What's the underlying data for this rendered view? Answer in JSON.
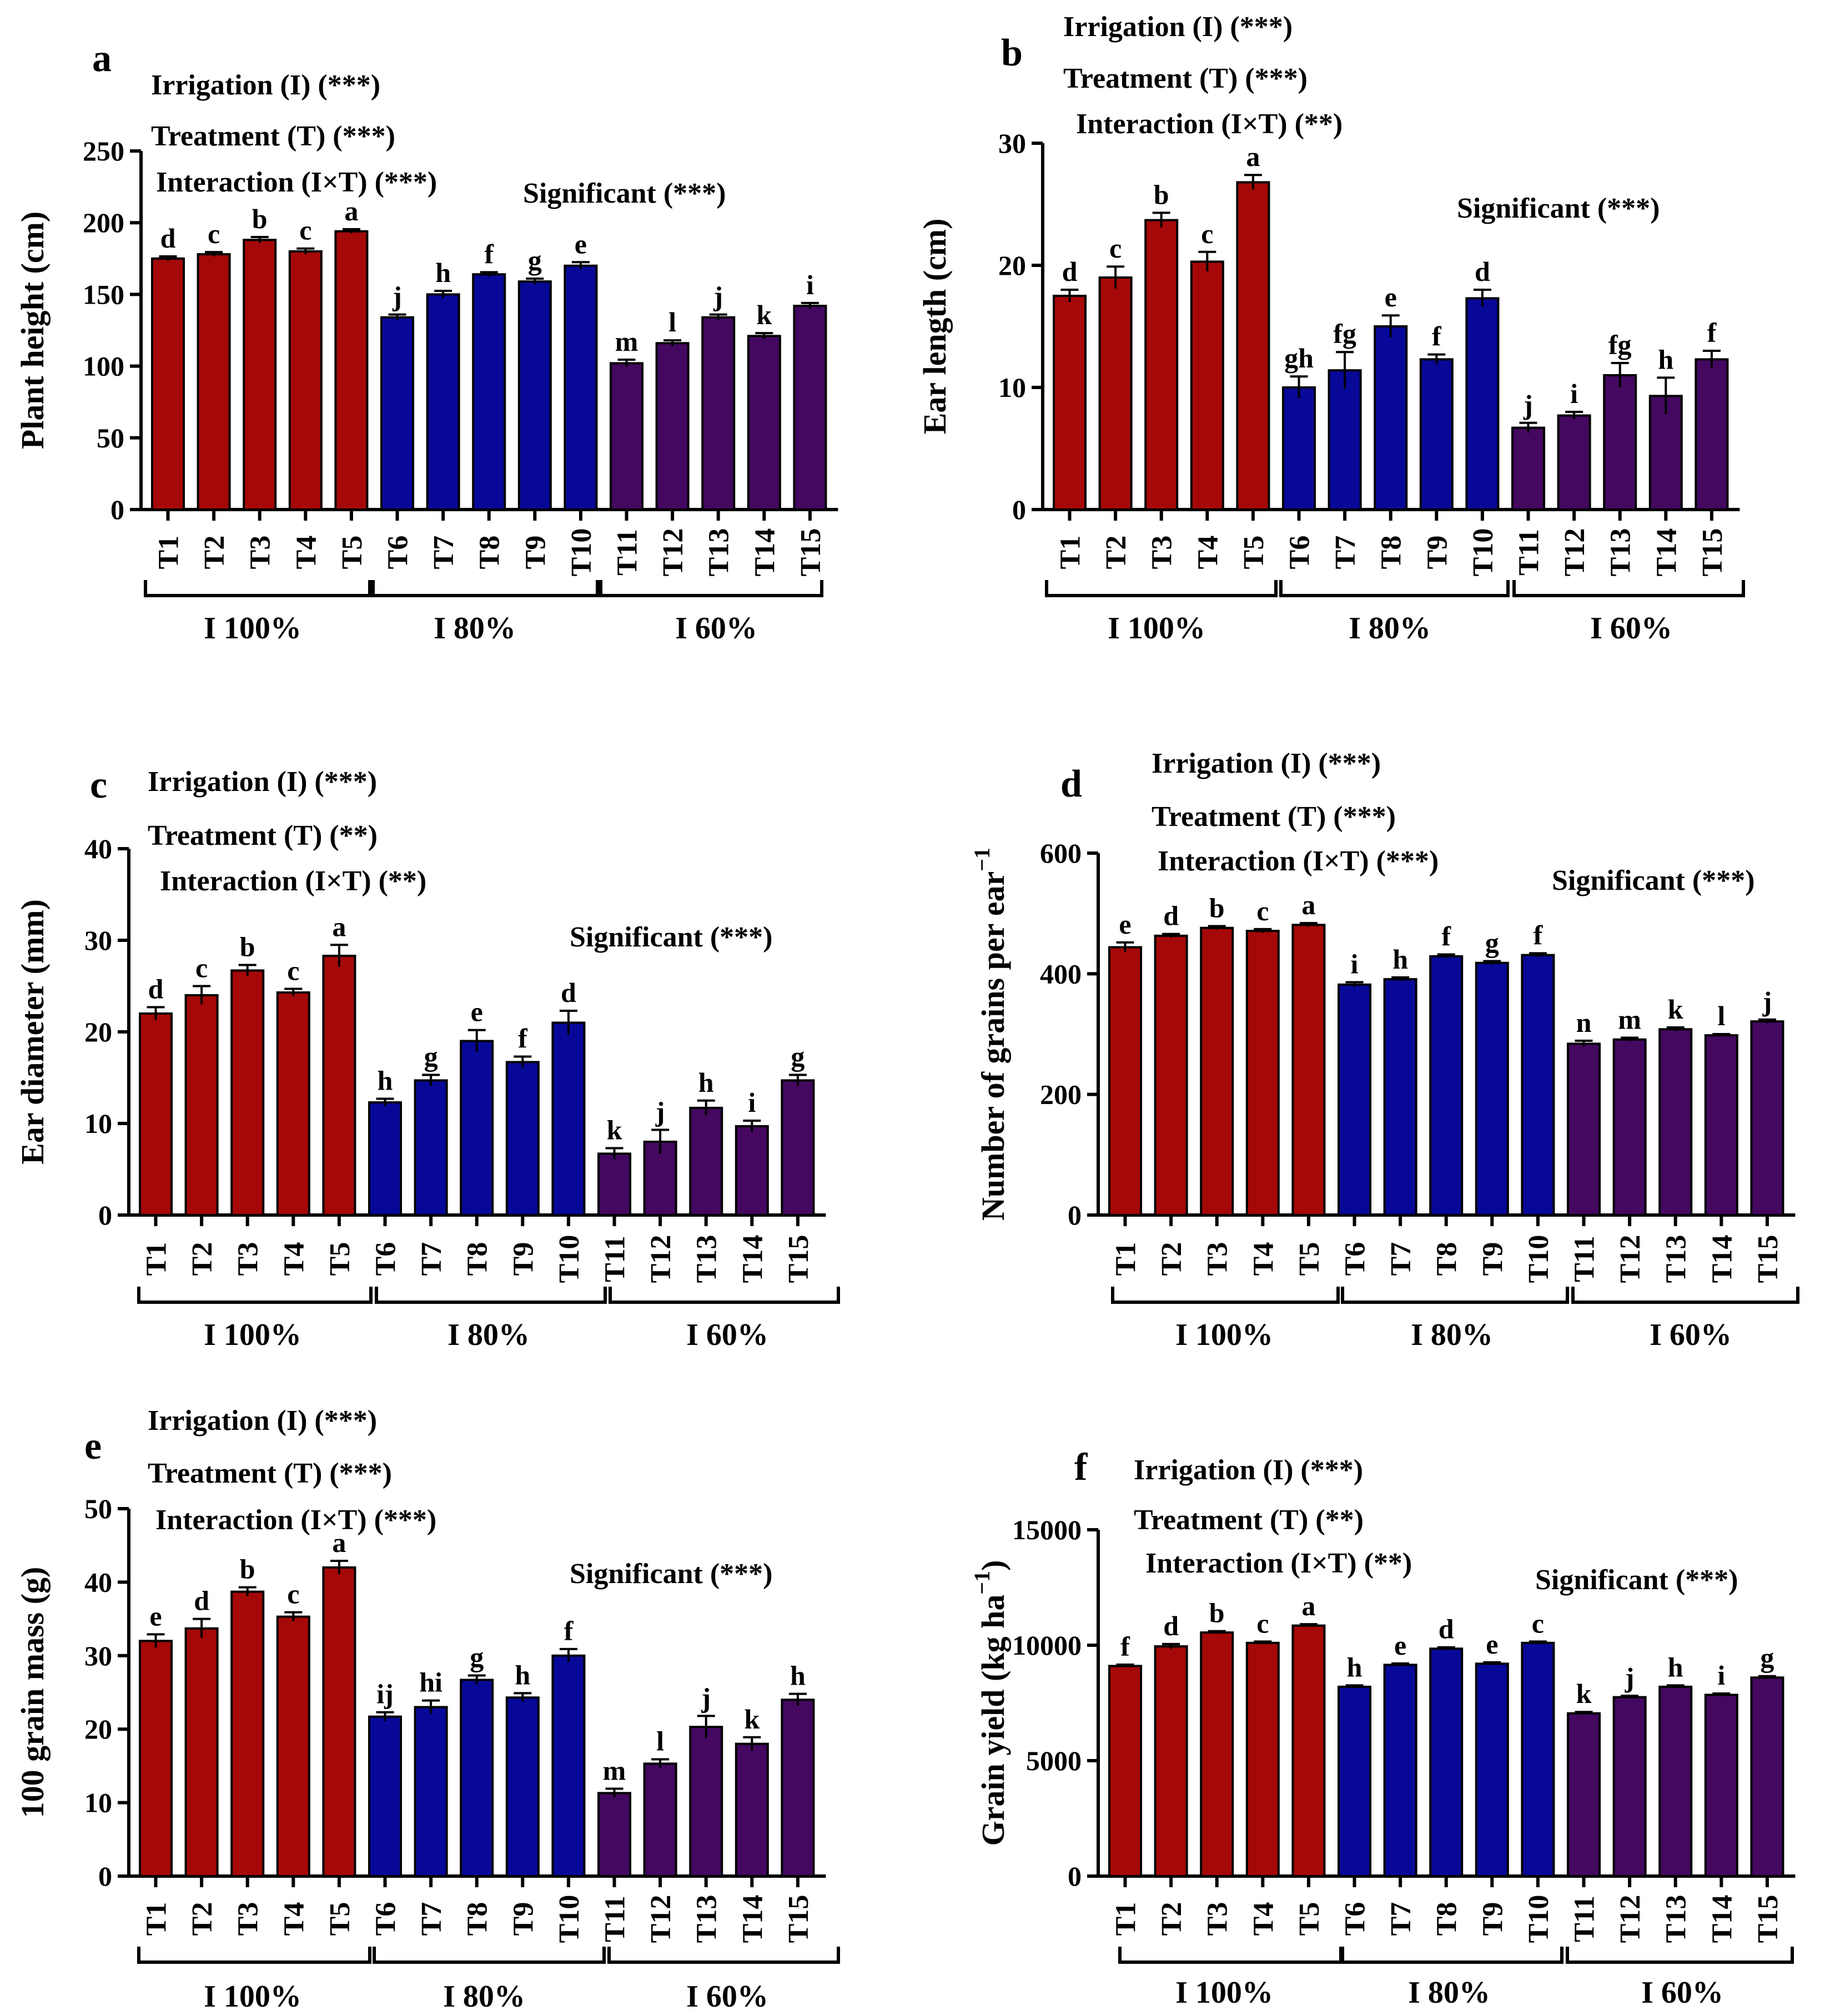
{
  "figure": {
    "group_labels": [
      "I 100%",
      "I 80%",
      "I 60%"
    ],
    "categories": [
      "T1",
      "T2",
      "T3",
      "T4",
      "T5",
      "T6",
      "T7",
      "T8",
      "T9",
      "T10",
      "T11",
      "T12",
      "T13",
      "T14",
      "T15"
    ],
    "colors": {
      "I 100%": "#a50808",
      "I 80%": "#080898",
      "I 60%": "#440860"
    }
  },
  "chart_data": [
    {
      "panel": "a",
      "type": "bar",
      "ylabel": "Plant height (cm)",
      "ylim": [
        0,
        250
      ],
      "yticks": [
        0,
        50,
        100,
        150,
        200,
        250
      ],
      "annotations": [
        "Irrigation (I) (***)",
        "Treatment (T) (***)",
        "Interaction (I×T) (***)"
      ],
      "significance": "Significant (***)",
      "values": [
        175,
        178,
        188,
        180,
        194,
        134,
        150,
        164,
        159,
        170,
        102,
        116,
        134,
        121,
        142
      ],
      "errors": [
        1.5,
        1.5,
        2,
        2,
        1.5,
        2,
        2.5,
        1.5,
        2,
        2.5,
        2.5,
        2,
        2,
        2,
        2
      ],
      "letters": [
        "d",
        "c",
        "b",
        "c",
        "a",
        "j",
        "h",
        "f",
        "g",
        "e",
        "m",
        "l",
        "j",
        "k",
        "i"
      ]
    },
    {
      "panel": "b",
      "type": "bar",
      "ylabel": "Ear length (cm)",
      "ylim": [
        0,
        30
      ],
      "yticks": [
        0,
        10,
        20,
        30
      ],
      "annotations": [
        "Irrigation (I) (***)",
        "Treatment (T) (***)",
        "Interaction (I×T) (**)"
      ],
      "significance": "Significant (***)",
      "values": [
        17.5,
        19.0,
        23.7,
        20.3,
        26.8,
        10.0,
        11.4,
        15.0,
        12.3,
        17.3,
        6.7,
        7.7,
        11.0,
        9.3,
        12.3
      ],
      "errors": [
        0.5,
        0.9,
        0.6,
        0.8,
        0.6,
        0.9,
        1.5,
        0.9,
        0.4,
        0.7,
        0.4,
        0.3,
        1.0,
        1.5,
        0.7
      ],
      "letters": [
        "d",
        "c",
        "b",
        "c",
        "a",
        "gh",
        "fg",
        "e",
        "f",
        "d",
        "j",
        "i",
        "fg",
        "h",
        "f"
      ]
    },
    {
      "panel": "c",
      "type": "bar",
      "ylabel": "Ear diameter (mm)",
      "ylim": [
        0,
        40
      ],
      "yticks": [
        0,
        10,
        20,
        30,
        40
      ],
      "annotations": [
        "Irrigation (I) (***)",
        "Treatment (T) (**)",
        "Interaction (I×T) (**)"
      ],
      "significance": "Significant (***)",
      "values": [
        22.0,
        24.0,
        26.7,
        24.3,
        28.3,
        12.3,
        14.7,
        19.0,
        16.7,
        21.0,
        6.7,
        8.0,
        11.7,
        9.7,
        14.7
      ],
      "errors": [
        0.7,
        1.0,
        0.6,
        0.4,
        1.2,
        0.4,
        0.6,
        1.2,
        0.6,
        1.3,
        0.6,
        1.3,
        0.8,
        0.6,
        0.6
      ],
      "letters": [
        "d",
        "c",
        "b",
        "c",
        "a",
        "h",
        "g",
        "e",
        "f",
        "d",
        "k",
        "j",
        "h",
        "i",
        "g"
      ]
    },
    {
      "panel": "d",
      "type": "bar",
      "ylabel": "Number of grains per ear",
      "ylabel_superscript": "−1",
      "ylim": [
        0,
        600
      ],
      "yticks": [
        0,
        200,
        400,
        600
      ],
      "annotations": [
        "Irrigation (I) (***)",
        "Treatment (T) (***)",
        "Interaction (I×T) (***)"
      ],
      "significance": "Significant (***)",
      "values": [
        444,
        463,
        476,
        471,
        481,
        382,
        391,
        429,
        418,
        431,
        284,
        291,
        308,
        298,
        321
      ],
      "errors": [
        8,
        3,
        3,
        3,
        3,
        4,
        3,
        3,
        3,
        3,
        5,
        3,
        3,
        2,
        3
      ],
      "letters": [
        "e",
        "d",
        "b",
        "c",
        "a",
        "i",
        "h",
        "f",
        "g",
        "f",
        "n",
        "m",
        "k",
        "l",
        "j"
      ]
    },
    {
      "panel": "e",
      "type": "bar",
      "ylabel": "100 grain mass (g)",
      "ylim": [
        0,
        50
      ],
      "yticks": [
        0,
        10,
        20,
        30,
        40,
        50
      ],
      "annotations": [
        "Irrigation (I) (***)",
        "Treatment (T) (***)",
        "Interaction (I×T) (***)"
      ],
      "significance": "Significant (***)",
      "values": [
        32.0,
        33.7,
        38.7,
        35.3,
        42.0,
        21.7,
        23.0,
        26.7,
        24.3,
        30.0,
        11.3,
        15.3,
        20.3,
        18.0,
        24.0
      ],
      "errors": [
        0.9,
        1.3,
        0.6,
        0.6,
        0.9,
        0.6,
        0.9,
        0.6,
        0.6,
        0.9,
        0.6,
        0.6,
        1.5,
        0.9,
        0.8
      ],
      "letters": [
        "e",
        "d",
        "b",
        "c",
        "a",
        "ij",
        "hi",
        "g",
        "h",
        "f",
        "m",
        "l",
        "j",
        "k",
        "h"
      ]
    },
    {
      "panel": "f",
      "type": "bar",
      "ylabel": "Grain yield (kg ha",
      "ylabel_superscript": "−1",
      "ylabel_suffix": ")",
      "ylim": [
        0,
        15000
      ],
      "yticks": [
        0,
        5000,
        10000,
        15000
      ],
      "annotations": [
        "Irrigation (I) (***)",
        "Treatment (T) (**)",
        "Interaction (I×T) (**)"
      ],
      "significance": "Significant (***)",
      "values": [
        9100,
        9950,
        10550,
        10100,
        10850,
        8200,
        9150,
        9850,
        9200,
        10100,
        7050,
        7750,
        8200,
        7850,
        8600
      ],
      "errors": [
        60,
        100,
        60,
        60,
        60,
        60,
        60,
        60,
        60,
        60,
        60,
        60,
        60,
        60,
        60
      ],
      "letters": [
        "f",
        "d",
        "b",
        "c",
        "a",
        "h",
        "e",
        "d",
        "e",
        "c",
        "k",
        "j",
        "h",
        "i",
        "g"
      ]
    }
  ]
}
